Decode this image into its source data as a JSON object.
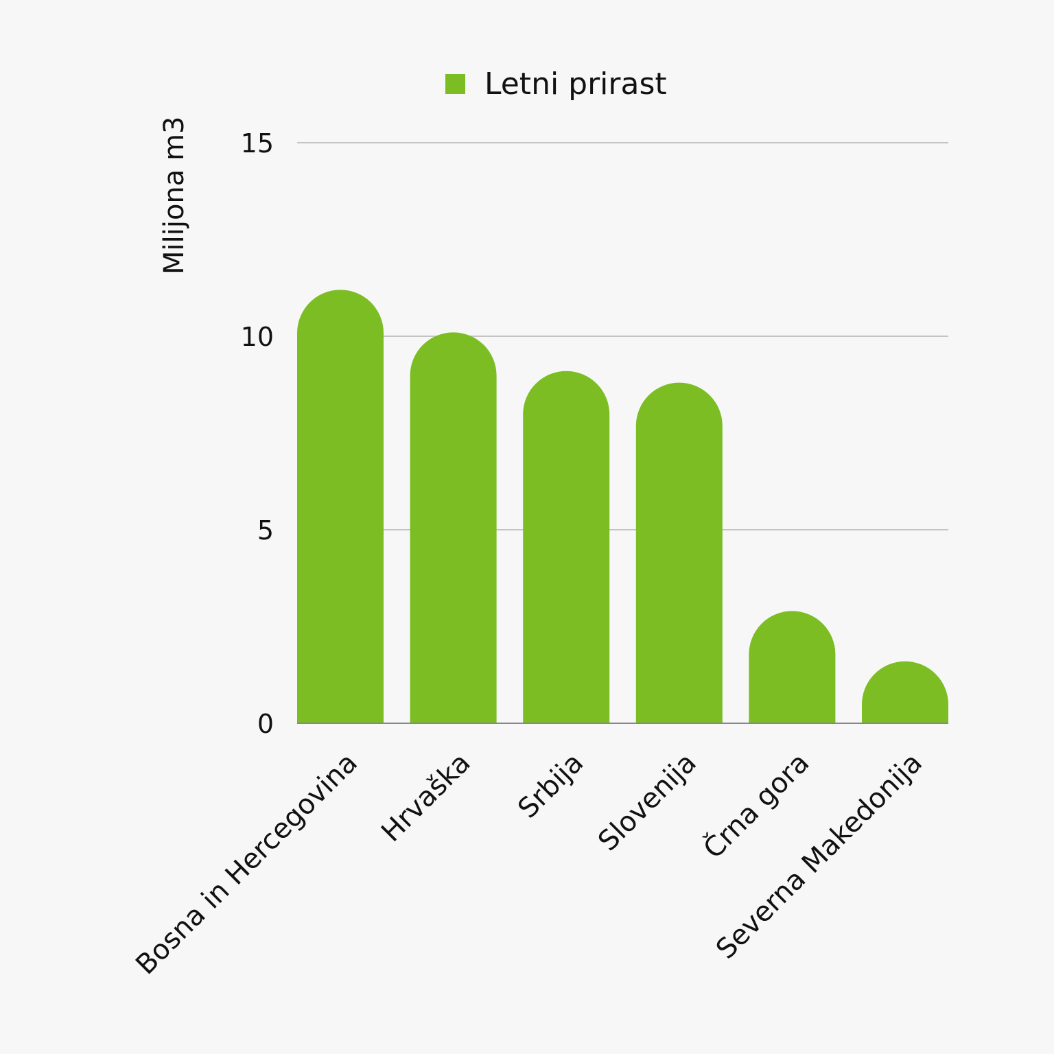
{
  "chart_data": {
    "type": "bar",
    "title": "",
    "xlabel": "",
    "ylabel": "Milijona m3",
    "ylim": [
      0,
      15
    ],
    "yticks": [
      0,
      5,
      10,
      15
    ],
    "grid": true,
    "legend_position": "top-center",
    "categories": [
      "Bosna in Hercegovina",
      "Hrvaška",
      "Srbija",
      "Slovenija",
      "Črna gora",
      "Severna Makedonija"
    ],
    "series": [
      {
        "name": "Letni prirast",
        "color": "#7bbd22",
        "values": [
          11.2,
          10.1,
          9.1,
          8.8,
          2.9,
          1.6
        ]
      }
    ]
  }
}
